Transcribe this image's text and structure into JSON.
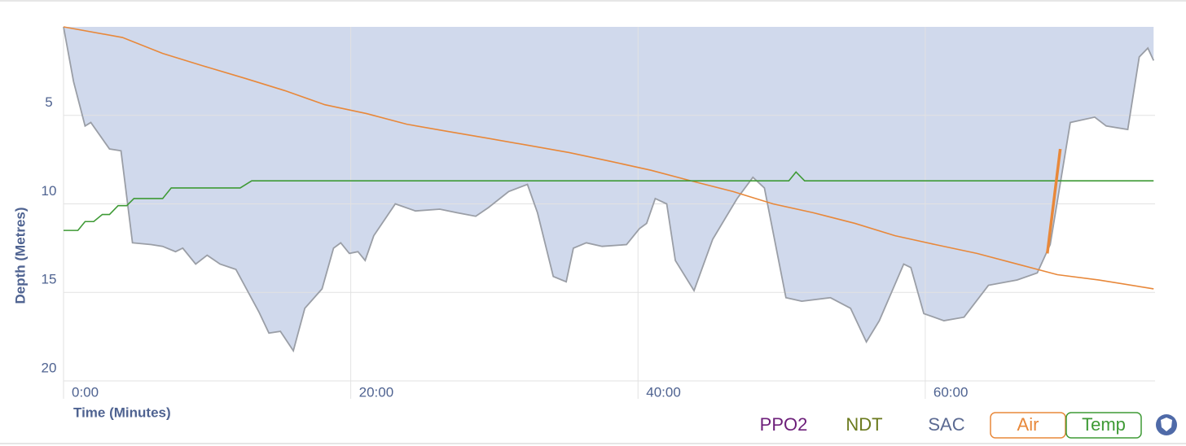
{
  "chart_data": {
    "type": "line",
    "y_label": "Depth (Metres)",
    "x_label": "Time (Minutes)",
    "xlim": [
      0,
      76
    ],
    "xticks": [
      {
        "value": 0,
        "label": "0:00"
      },
      {
        "value": 20,
        "label": "20:00"
      },
      {
        "value": 40,
        "label": "40:00"
      },
      {
        "value": 60,
        "label": "60:00"
      }
    ],
    "ylim": [
      0,
      20
    ],
    "yticks": [
      5,
      10,
      15,
      20
    ],
    "inverted_y": true,
    "grid": true,
    "series": [
      {
        "name": "Depth",
        "color": "#9a9ea6",
        "fill": "#d0d9ec",
        "x": [
          0,
          0.7,
          1.5,
          1.9,
          3.2,
          4.0,
          4.8,
          6.1,
          6.9,
          7.8,
          8.3,
          9.2,
          10.0,
          10.9,
          12.0,
          13.6,
          14.3,
          15.1,
          16.0,
          16.8,
          18.0,
          18.8,
          19.3,
          19.9,
          20.5,
          21.0,
          21.6,
          23.1,
          24.5,
          26.2,
          27.4,
          28.7,
          29.6,
          31.0,
          32.3,
          33.0,
          34.1,
          35.0,
          35.5,
          36.4,
          37.5,
          39.2,
          40.1,
          40.6,
          41.2,
          42.0,
          42.6,
          43.9,
          45.2,
          46.9,
          48.0,
          48.8,
          50.3,
          51.4,
          53.4,
          54.8,
          55.9,
          56.8,
          58.5,
          59.0,
          59.9,
          61.3,
          62.7,
          64.4,
          66.4,
          67.8,
          68.7,
          70.1,
          71.8,
          72.6,
          74.1,
          74.9,
          75.5,
          75.9
        ],
        "values": [
          0,
          3.1,
          5.6,
          5.4,
          6.9,
          7.0,
          12.2,
          12.3,
          12.4,
          12.7,
          12.5,
          13.4,
          12.9,
          13.4,
          13.7,
          16.1,
          17.3,
          17.2,
          18.3,
          15.9,
          14.8,
          12.5,
          12.2,
          12.8,
          12.7,
          13.2,
          11.8,
          10.0,
          10.4,
          10.3,
          10.5,
          10.7,
          10.2,
          9.3,
          8.9,
          10.5,
          14.1,
          14.4,
          12.5,
          12.2,
          12.4,
          12.3,
          11.4,
          11.1,
          9.7,
          10.0,
          13.2,
          14.9,
          12.0,
          9.7,
          8.5,
          9.1,
          15.3,
          15.5,
          15.3,
          15.9,
          17.8,
          16.6,
          13.4,
          13.6,
          16.2,
          16.6,
          16.4,
          14.6,
          14.3,
          13.9,
          12.3,
          5.4,
          5.1,
          5.6,
          5.8,
          1.7,
          1.2,
          1.9
        ]
      },
      {
        "name": "Air",
        "color": "#e8883a",
        "x": [
          0,
          4.1,
          6.9,
          9.7,
          12.6,
          15.4,
          18.2,
          21.1,
          23.9,
          26.7,
          29.6,
          32.4,
          35.2,
          38.1,
          40.9,
          43.7,
          46.6,
          49.4,
          52.2,
          55.1,
          57.9,
          60.7,
          63.6,
          66.4,
          69.2,
          72.1,
          75.9
        ],
        "values": [
          0,
          0.6,
          1.5,
          2.2,
          2.9,
          3.6,
          4.4,
          4.9,
          5.5,
          5.9,
          6.3,
          6.7,
          7.1,
          7.6,
          8.1,
          8.7,
          9.3,
          10.0,
          10.5,
          11.1,
          11.8,
          12.3,
          12.8,
          13.4,
          14.0,
          14.3,
          14.8
        ]
      },
      {
        "name": "Temp",
        "color": "#3e9a35",
        "x": [
          0,
          1,
          1.5,
          2.1,
          2.7,
          3.2,
          3.8,
          4.4,
          4.9,
          6.9,
          7.5,
          12.3,
          13.1,
          50.5,
          51.0,
          51.6,
          75.9
        ],
        "values": [
          11.5,
          11.5,
          11.0,
          11.0,
          10.6,
          10.6,
          10.1,
          10.1,
          9.7,
          9.7,
          9.1,
          9.1,
          8.7,
          8.7,
          8.2,
          8.7,
          8.7
        ]
      }
    ],
    "highlight": {
      "color": "#e8883a",
      "x": [
        68.5,
        69.4
      ],
      "values": [
        12.8,
        6.9
      ]
    },
    "legend": [
      {
        "label": "PPO2",
        "color": "#6d1f7a",
        "boxed": false
      },
      {
        "label": "NDT",
        "color": "#6b7a1e",
        "boxed": false
      },
      {
        "label": "SAC",
        "color": "#5b6a92",
        "boxed": false
      },
      {
        "label": "Air",
        "color": "#e8883a",
        "boxed": true
      },
      {
        "label": "Temp",
        "color": "#3e9a35",
        "boxed": true
      }
    ]
  }
}
